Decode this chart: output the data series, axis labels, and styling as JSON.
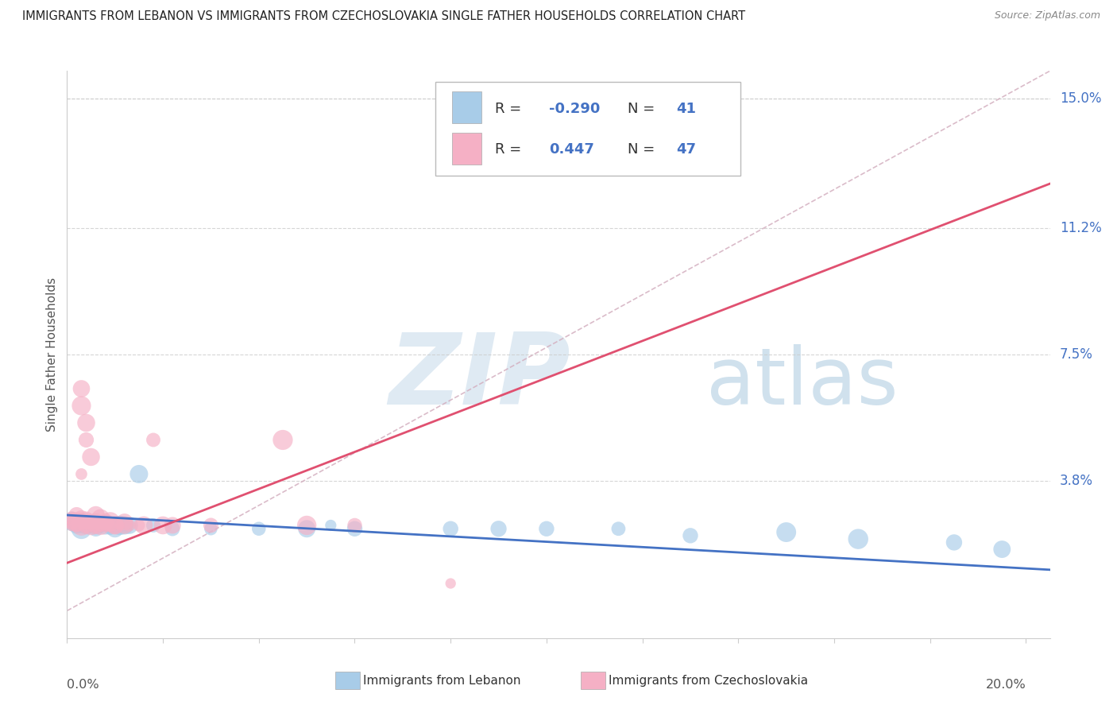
{
  "title": "IMMIGRANTS FROM LEBANON VS IMMIGRANTS FROM CZECHOSLOVAKIA SINGLE FATHER HOUSEHOLDS CORRELATION CHART",
  "source": "Source: ZipAtlas.com",
  "ylabel": "Single Father Households",
  "ytick_vals": [
    0.0,
    0.038,
    0.075,
    0.112,
    0.15
  ],
  "ytick_labels": [
    "",
    "3.8%",
    "7.5%",
    "11.2%",
    "15.0%"
  ],
  "xlim": [
    0.0,
    0.205
  ],
  "ylim": [
    -0.008,
    0.158
  ],
  "color_lebanon": "#a8cce8",
  "color_czech": "#f5b0c5",
  "line_color_lebanon": "#4472c4",
  "line_color_czech": "#e05070",
  "diag_line_color": "#d4b0c0",
  "leb_line": [
    [
      0.0,
      0.028
    ],
    [
      0.205,
      0.012
    ]
  ],
  "czech_line": [
    [
      0.0,
      0.014
    ],
    [
      0.205,
      0.125
    ]
  ],
  "diag_line": [
    [
      0.0,
      0.0
    ],
    [
      0.205,
      0.158
    ]
  ],
  "lebanon_pts": [
    [
      0.001,
      0.026
    ],
    [
      0.001,
      0.027
    ],
    [
      0.002,
      0.026
    ],
    [
      0.002,
      0.025
    ],
    [
      0.003,
      0.026
    ],
    [
      0.003,
      0.025
    ],
    [
      0.003,
      0.024
    ],
    [
      0.004,
      0.025
    ],
    [
      0.004,
      0.026
    ],
    [
      0.005,
      0.025
    ],
    [
      0.005,
      0.025
    ],
    [
      0.006,
      0.025
    ],
    [
      0.006,
      0.024
    ],
    [
      0.007,
      0.026
    ],
    [
      0.007,
      0.025
    ],
    [
      0.008,
      0.025
    ],
    [
      0.008,
      0.025
    ],
    [
      0.009,
      0.024
    ],
    [
      0.009,
      0.025
    ],
    [
      0.01,
      0.025
    ],
    [
      0.01,
      0.024
    ],
    [
      0.011,
      0.025
    ],
    [
      0.012,
      0.025
    ],
    [
      0.013,
      0.025
    ],
    [
      0.015,
      0.04
    ],
    [
      0.018,
      0.025
    ],
    [
      0.022,
      0.024
    ],
    [
      0.03,
      0.024
    ],
    [
      0.04,
      0.024
    ],
    [
      0.05,
      0.024
    ],
    [
      0.055,
      0.025
    ],
    [
      0.06,
      0.024
    ],
    [
      0.08,
      0.024
    ],
    [
      0.09,
      0.024
    ],
    [
      0.1,
      0.024
    ],
    [
      0.115,
      0.024
    ],
    [
      0.13,
      0.022
    ],
    [
      0.15,
      0.023
    ],
    [
      0.165,
      0.021
    ],
    [
      0.185,
      0.02
    ],
    [
      0.195,
      0.018
    ]
  ],
  "czech_pts": [
    [
      0.001,
      0.025
    ],
    [
      0.001,
      0.027
    ],
    [
      0.001,
      0.026
    ],
    [
      0.002,
      0.026
    ],
    [
      0.002,
      0.025
    ],
    [
      0.002,
      0.028
    ],
    [
      0.003,
      0.025
    ],
    [
      0.003,
      0.027
    ],
    [
      0.003,
      0.026
    ],
    [
      0.003,
      0.04
    ],
    [
      0.003,
      0.06
    ],
    [
      0.003,
      0.065
    ],
    [
      0.004,
      0.025
    ],
    [
      0.004,
      0.026
    ],
    [
      0.004,
      0.027
    ],
    [
      0.004,
      0.05
    ],
    [
      0.004,
      0.055
    ],
    [
      0.005,
      0.025
    ],
    [
      0.005,
      0.026
    ],
    [
      0.005,
      0.045
    ],
    [
      0.006,
      0.025
    ],
    [
      0.006,
      0.026
    ],
    [
      0.006,
      0.028
    ],
    [
      0.007,
      0.025
    ],
    [
      0.007,
      0.026
    ],
    [
      0.007,
      0.027
    ],
    [
      0.007,
      0.025
    ],
    [
      0.008,
      0.025
    ],
    [
      0.008,
      0.026
    ],
    [
      0.009,
      0.025
    ],
    [
      0.009,
      0.026
    ],
    [
      0.01,
      0.025
    ],
    [
      0.01,
      0.025
    ],
    [
      0.011,
      0.025
    ],
    [
      0.012,
      0.025
    ],
    [
      0.012,
      0.026
    ],
    [
      0.013,
      0.025
    ],
    [
      0.015,
      0.025
    ],
    [
      0.016,
      0.025
    ],
    [
      0.018,
      0.05
    ],
    [
      0.02,
      0.025
    ],
    [
      0.022,
      0.025
    ],
    [
      0.03,
      0.025
    ],
    [
      0.045,
      0.05
    ],
    [
      0.05,
      0.025
    ],
    [
      0.06,
      0.025
    ],
    [
      0.08,
      0.008
    ]
  ],
  "grid_color": "#cccccc",
  "spine_color": "#cccccc",
  "r1_val": "-0.290",
  "n1_val": "41",
  "r2_val": "0.447",
  "n2_val": "47",
  "text_color_label": "#555555",
  "text_color_blue": "#4472c4",
  "watermark_zip_color": "#dce8f2",
  "watermark_atlas_color": "#c8dcea"
}
